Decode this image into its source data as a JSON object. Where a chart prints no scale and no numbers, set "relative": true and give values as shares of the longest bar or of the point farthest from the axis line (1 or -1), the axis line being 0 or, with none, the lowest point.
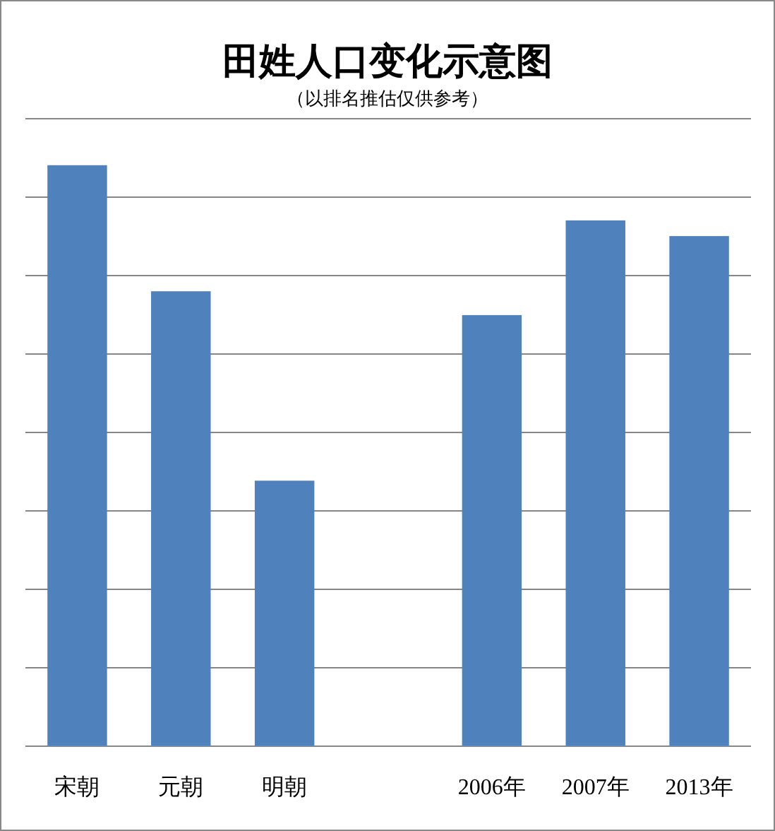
{
  "chart_data": {
    "type": "bar",
    "title": "田姓人口变化示意图",
    "subtitle": "（以排名推估仅供参考）",
    "categories": [
      "宋朝",
      "元朝",
      "明朝",
      null,
      "2006年",
      "2007年",
      "2013年"
    ],
    "values": [
      1,
      0.783,
      0.457,
      null,
      0.742,
      0.905,
      0.878
    ],
    "color": "#4f81bd",
    "relative": true,
    "grid": "y"
  }
}
